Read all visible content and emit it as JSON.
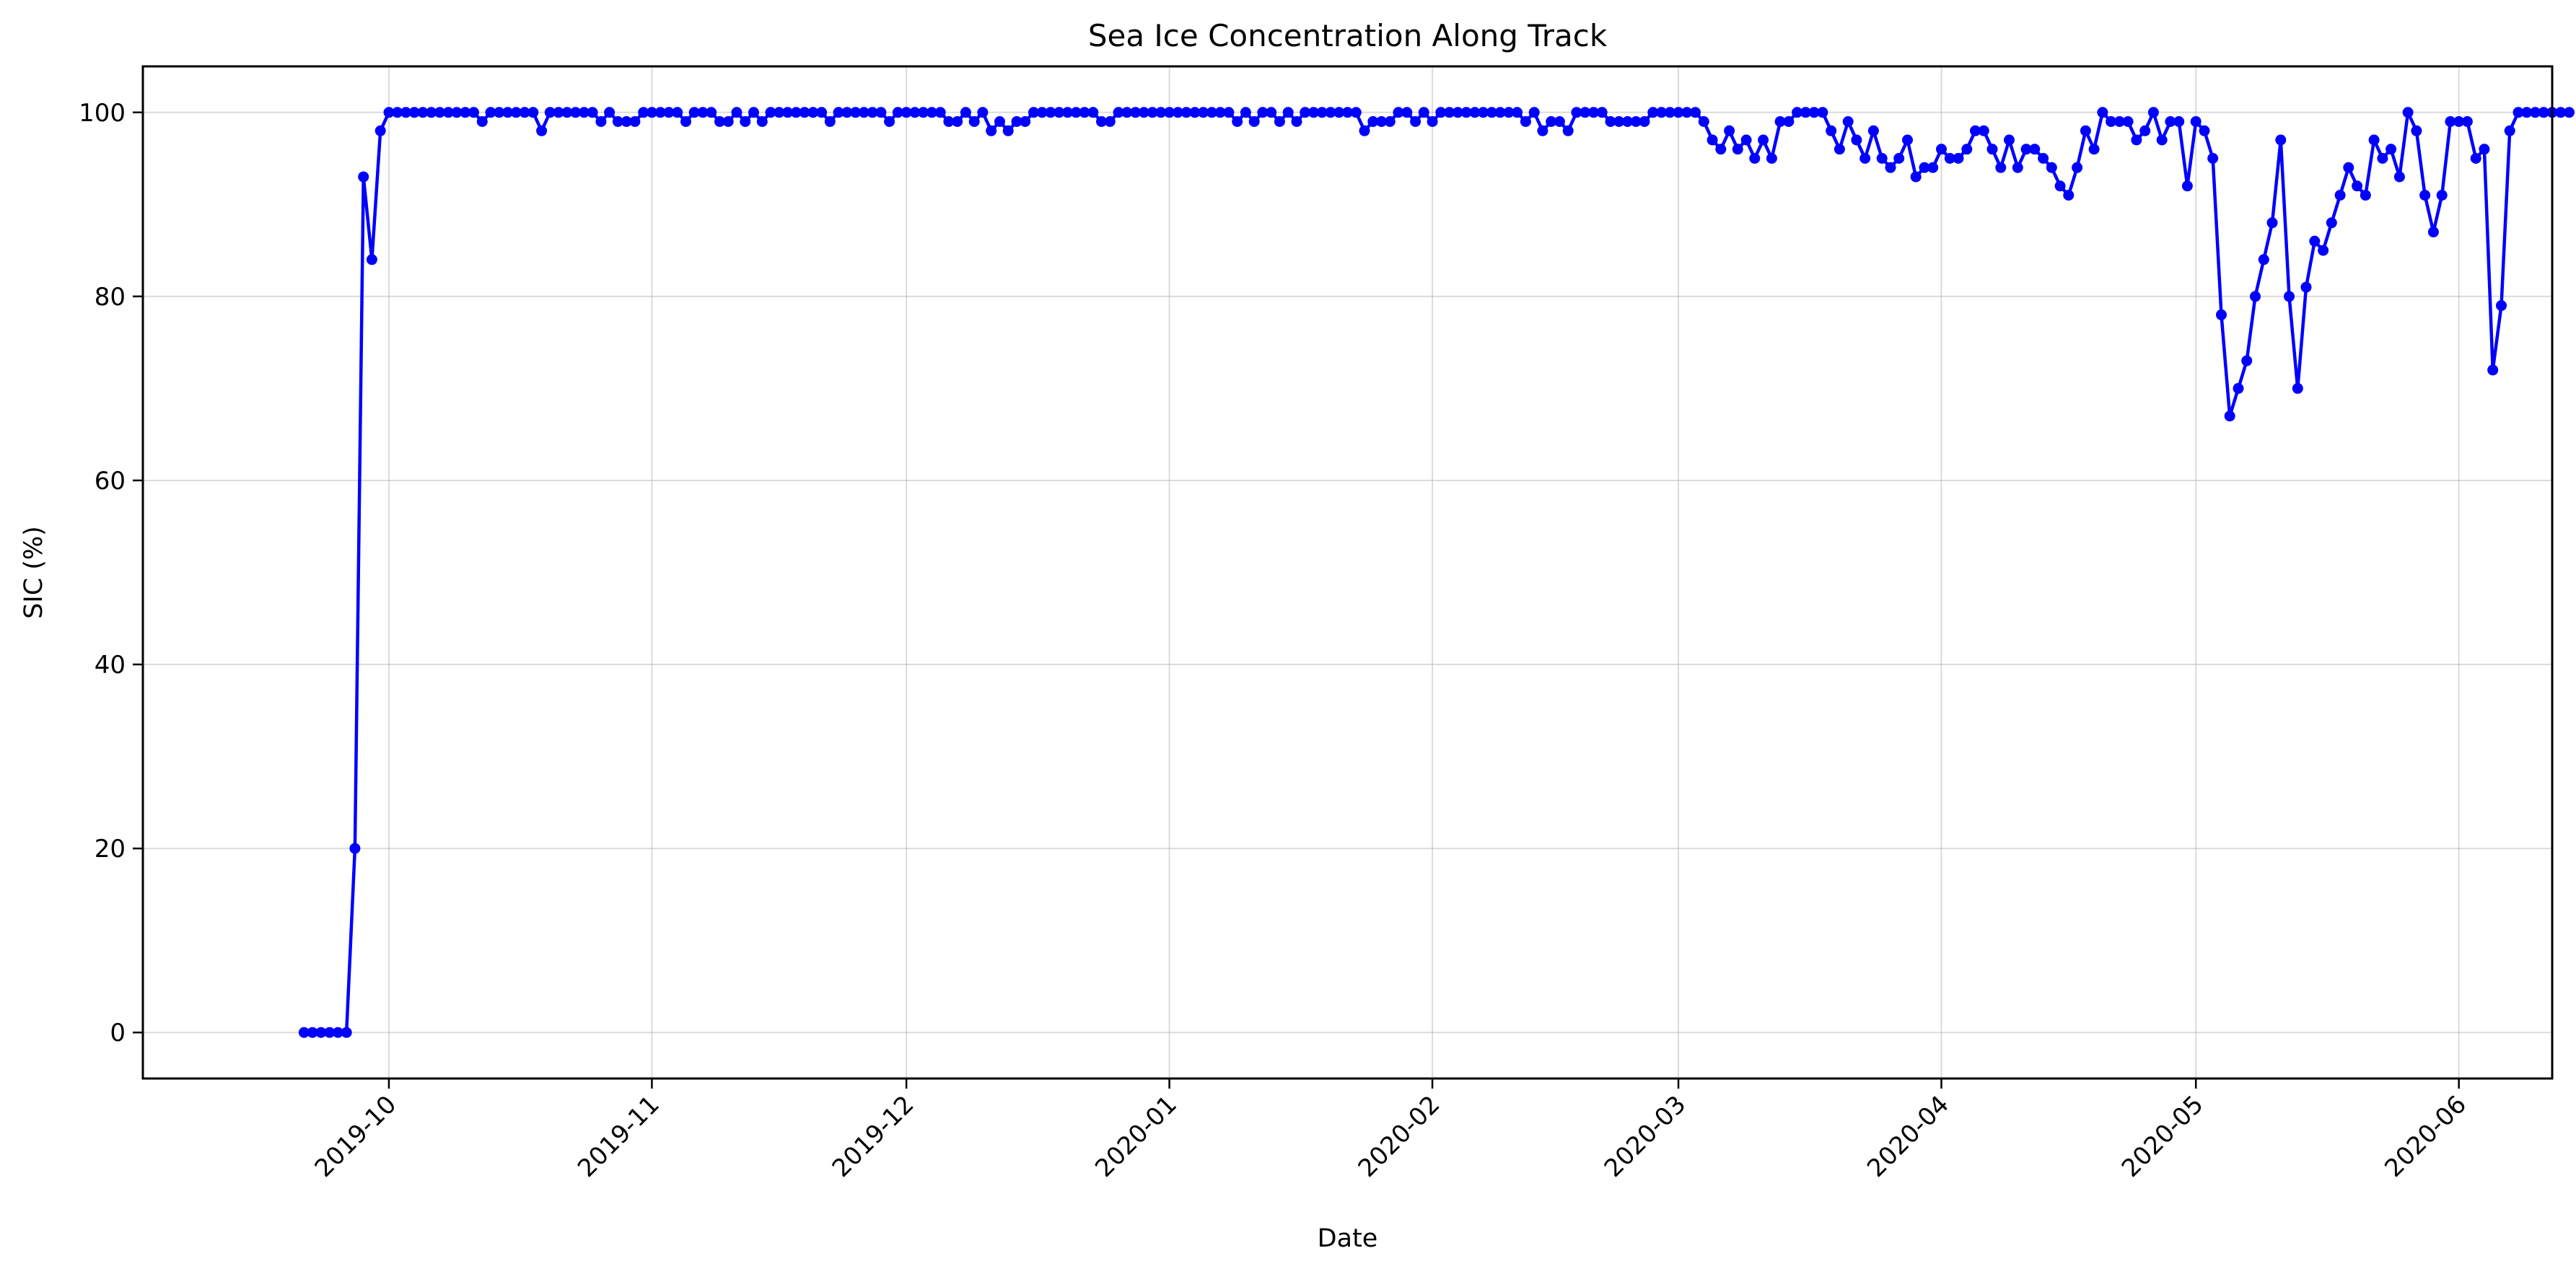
{
  "chart_data": {
    "type": "line",
    "title": "Sea Ice Concentration Along Track",
    "xlabel": "Date",
    "ylabel": "SIC (%)",
    "xlim": [
      "2019-09-02",
      "2020-06-12"
    ],
    "ylim": [
      -5,
      105
    ],
    "grid": true,
    "color": "#0000ff",
    "x_ticks": [
      "2019-10",
      "2019-11",
      "2019-12",
      "2020-01",
      "2020-02",
      "2020-03",
      "2020-04",
      "2020-05",
      "2020-06"
    ],
    "y_ticks": [
      "0",
      "20",
      "40",
      "60",
      "80",
      "100"
    ],
    "series": [
      {
        "start_date": "2019-09-21",
        "values": [
          0,
          0,
          0,
          0,
          0,
          0,
          20,
          93,
          84,
          98,
          100,
          100,
          100,
          100,
          100,
          100,
          100,
          100,
          100,
          100,
          100,
          99,
          100,
          100,
          100,
          100,
          100,
          100,
          98,
          100,
          100,
          100,
          100,
          100,
          100,
          99,
          100,
          99,
          99,
          99,
          100,
          100,
          100,
          100,
          100,
          99,
          100,
          100,
          100,
          99,
          99,
          100,
          99,
          100,
          99,
          100,
          100,
          100,
          100,
          100,
          100,
          100,
          99,
          100,
          100,
          100,
          100,
          100,
          100,
          99,
          100,
          100,
          100,
          100,
          100,
          100,
          99,
          99,
          100,
          99,
          100,
          98,
          99,
          98,
          99,
          99,
          100,
          100,
          100,
          100,
          100,
          100,
          100,
          100,
          99,
          99,
          100,
          100,
          100,
          100,
          100,
          100,
          100,
          100,
          100,
          100,
          100,
          100,
          100,
          100,
          99,
          100,
          99,
          100,
          100,
          99,
          100,
          99,
          100,
          100,
          100,
          100,
          100,
          100,
          100,
          98,
          99,
          99,
          99,
          100,
          100,
          99,
          100,
          99,
          100,
          100,
          100,
          100,
          100,
          100,
          100,
          100,
          100,
          100,
          99,
          100,
          98,
          99,
          99,
          98,
          100,
          100,
          100,
          100,
          99,
          99,
          99,
          99,
          99,
          100,
          100,
          100,
          100,
          100,
          100,
          99,
          97,
          96,
          98,
          96,
          97,
          95,
          97,
          95,
          99,
          99,
          100,
          100,
          100,
          100,
          98,
          96,
          99,
          97,
          95,
          98,
          95,
          94,
          95,
          97,
          93,
          94,
          94,
          96,
          95,
          95,
          96,
          98,
          98,
          96,
          94,
          97,
          94,
          96,
          96,
          95,
          94,
          92,
          91,
          94,
          98,
          96,
          100,
          99,
          99,
          99,
          97,
          98,
          100,
          97,
          99,
          99,
          92,
          99,
          98,
          95,
          78,
          67,
          70,
          73,
          80,
          84,
          88,
          97,
          80,
          70,
          81,
          86,
          85,
          88,
          91,
          94,
          92,
          91,
          97,
          95,
          96,
          93,
          100,
          98,
          91,
          87,
          91,
          99,
          99,
          99,
          95,
          96,
          72,
          79,
          98,
          100,
          100,
          100,
          100,
          100,
          100,
          100
        ]
      }
    ]
  }
}
